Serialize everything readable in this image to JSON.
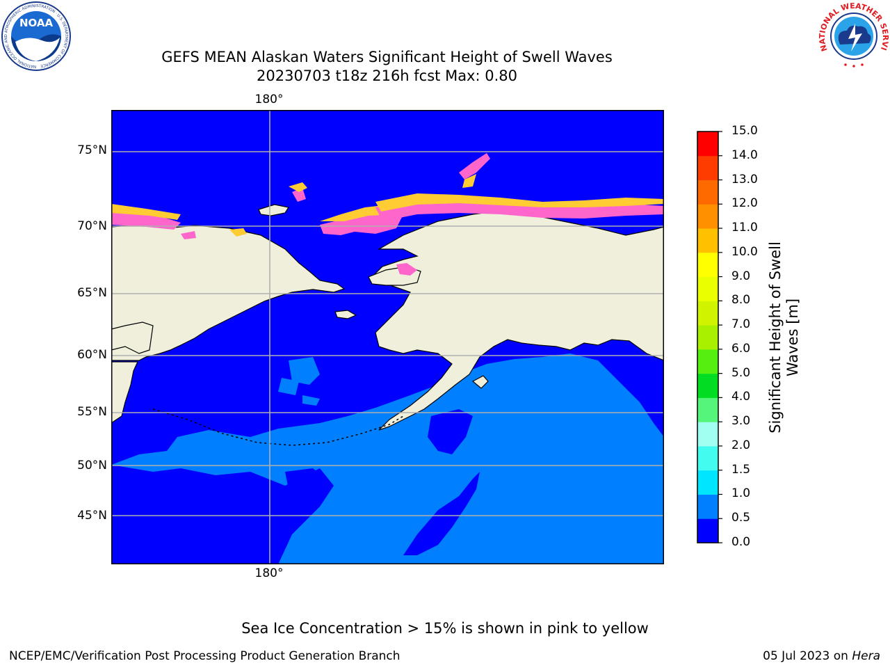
{
  "title": {
    "line1": "GEFS MEAN Alaskan Waters Significant Height of Swell Waves",
    "line2": "20230703 t18z 216h fcst   Max: 0.80"
  },
  "map": {
    "lat_labels": [
      "75°N",
      "70°N",
      "65°N",
      "60°N",
      "55°N",
      "50°N",
      "45°N"
    ],
    "lon_label_top": "180°",
    "lon_label_bottom": "180°",
    "colors": {
      "land": "#efefdc",
      "ocean_low": "#0000ff",
      "ocean_mid": "#0080ff",
      "coast": "#000000",
      "grid": "#b0b0b0"
    }
  },
  "colorbar": {
    "label_line1": "Significant Height of Swell",
    "label_line2": "Waves [m]",
    "levels": [
      "0.0",
      "0.5",
      "1.0",
      "1.5",
      "2.0",
      "3.0",
      "4.0",
      "5.0",
      "6.0",
      "7.0",
      "8.0",
      "9.0",
      "10.0",
      "11.0",
      "12.0",
      "13.0",
      "14.0",
      "15.0"
    ],
    "colors": [
      "#0000ff",
      "#0080ff",
      "#00e5ff",
      "#44fbf0",
      "#a0fff0",
      "#55f47a",
      "#00dd22",
      "#55ee11",
      "#a8f000",
      "#d0f400",
      "#eaff00",
      "#ffff00",
      "#ffc000",
      "#ff9000",
      "#ff6a00",
      "#ff3c00",
      "#ff0000"
    ]
  },
  "logos": {
    "noaa_text": "NOAA",
    "noaa_ring": "NATIONAL OCEANIC AND ATMOSPHERIC ADMINISTRATION · U.S. DEPARTMENT OF COMMERCE",
    "nws_ring": "NATIONAL WEATHER SERVICE"
  },
  "note": "Sea Ice Concentration > 15% is shown in pink to yellow",
  "footer": {
    "left": "NCEP/EMC/Verification Post Processing Product Generation Branch",
    "date": "05 Jul 2023 on",
    "machine": "Hera"
  }
}
